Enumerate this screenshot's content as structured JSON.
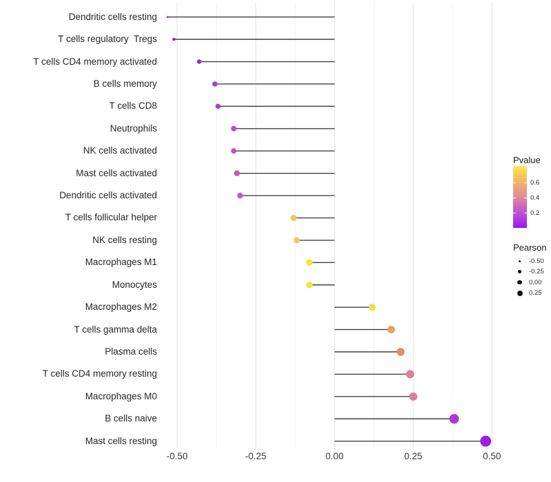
{
  "chart_data": {
    "type": "scatter",
    "style": "lollipop-horizontal",
    "title": "",
    "xlabel": "",
    "ylabel": "",
    "grid": "vertical-only",
    "x_ticks": [
      "-0.50",
      "-0.25",
      "0.00",
      "0.25",
      "0.50"
    ],
    "x_tick_values": [
      -0.5,
      -0.25,
      0,
      0.25,
      0.5
    ],
    "x_minor_values": [
      -0.375,
      -0.125,
      0.125,
      0.375
    ],
    "xlim": [
      -0.555,
      0.57
    ],
    "baseline_value": 0,
    "rows": [
      {
        "label": "Dendritic cells resting",
        "pearson": -0.53,
        "pvalue_approx": 0.05,
        "dot_color": "#9e1fe6",
        "dot_diameter": 3
      },
      {
        "label": "T cells regulatory  Tregs",
        "pearson": -0.51,
        "pvalue_approx": 0.06,
        "dot_color": "#991fd8",
        "dot_diameter": 4.5
      },
      {
        "label": "T cells CD4 memory activated",
        "pearson": -0.43,
        "pvalue_approx": 0.1,
        "dot_color": "#9530cc",
        "dot_diameter": 6.5
      },
      {
        "label": "B cells memory",
        "pearson": -0.38,
        "pvalue_approx": 0.15,
        "dot_color": "#a73fc9",
        "dot_diameter": 7.5
      },
      {
        "label": "T cells CD8",
        "pearson": -0.37,
        "pvalue_approx": 0.15,
        "dot_color": "#a942c8",
        "dot_diameter": 7.5
      },
      {
        "label": "Neutrophils",
        "pearson": -0.32,
        "pvalue_approx": 0.2,
        "dot_color": "#bc50c6",
        "dot_diameter": 8
      },
      {
        "label": "NK cells activated",
        "pearson": -0.32,
        "pvalue_approx": 0.2,
        "dot_color": "#bd53c5",
        "dot_diameter": 8
      },
      {
        "label": "Mast cells activated",
        "pearson": -0.31,
        "pvalue_approx": 0.22,
        "dot_color": "#c159c3",
        "dot_diameter": 8.5
      },
      {
        "label": "Dendritic cells activated",
        "pearson": -0.3,
        "pvalue_approx": 0.22,
        "dot_color": "#c25ac2",
        "dot_diameter": 8.5
      },
      {
        "label": "T cells follicular helper",
        "pearson": -0.13,
        "pvalue_approx": 0.55,
        "dot_color": "#f1c75f",
        "dot_diameter": 9
      },
      {
        "label": "NK cells resting",
        "pearson": -0.12,
        "pvalue_approx": 0.55,
        "dot_color": "#f2c95e",
        "dot_diameter": 9
      },
      {
        "label": "Macrophages M1",
        "pearson": -0.08,
        "pvalue_approx": 0.65,
        "dot_color": "#f2e636",
        "dot_diameter": 9.5
      },
      {
        "label": "Monocytes",
        "pearson": -0.08,
        "pvalue_approx": 0.67,
        "dot_color": "#f3ea2e",
        "dot_diameter": 9.5
      },
      {
        "label": "Macrophages M2",
        "pearson": 0.12,
        "pvalue_approx": 0.6,
        "dot_color": "#f4da4a",
        "dot_diameter": 10
      },
      {
        "label": "T cells gamma delta",
        "pearson": 0.18,
        "pvalue_approx": 0.45,
        "dot_color": "#eda260",
        "dot_diameter": 11
      },
      {
        "label": "Plasma cells",
        "pearson": 0.21,
        "pvalue_approx": 0.35,
        "dot_color": "#e28a7d",
        "dot_diameter": 11.5
      },
      {
        "label": "T cells CD4 memory resting",
        "pearson": 0.24,
        "pvalue_approx": 0.3,
        "dot_color": "#dd8096",
        "dot_diameter": 12
      },
      {
        "label": "Macrophages M0",
        "pearson": 0.25,
        "pvalue_approx": 0.3,
        "dot_color": "#dc7f9a",
        "dot_diameter": 12
      },
      {
        "label": "B cells naive",
        "pearson": 0.38,
        "pvalue_approx": 0.12,
        "dot_color": "#a93ad8",
        "dot_diameter": 14
      },
      {
        "label": "Mast cells resting",
        "pearson": 0.48,
        "pvalue_approx": 0.05,
        "dot_color": "#9c20e4",
        "dot_diameter": 16
      }
    ],
    "legend": {
      "pvalue": {
        "title": "Pvalue",
        "tick_labels": [
          "0.6",
          "0.4",
          "0.2"
        ],
        "tick_values": [
          0.6,
          0.4,
          0.2
        ],
        "gradient_top_to_bottom": [
          "#fce94f",
          "#f4b564",
          "#e18b9b",
          "#be53cf",
          "#9e17f1"
        ]
      },
      "pearson": {
        "title": "Pearson",
        "dot_color": "#111111",
        "items": [
          {
            "label": "-0.50",
            "diameter": 3
          },
          {
            "label": "-0.25",
            "diameter": 4.7
          },
          {
            "label": "0.00",
            "diameter": 6.7
          },
          {
            "label": "0.25",
            "diameter": 8
          }
        ]
      }
    },
    "colors": {
      "background": "#ffffff",
      "stem": "#404040",
      "grid_major": "#e3e3e3",
      "grid_minor": "#f2f2f2",
      "axis_text": "#3a3a3a",
      "label_text": "#262626"
    }
  }
}
